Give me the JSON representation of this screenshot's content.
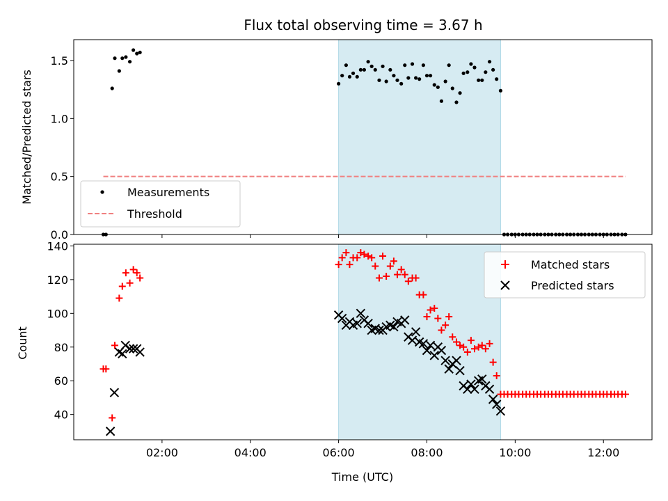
{
  "chart_data": [
    {
      "type": "scatter",
      "title": "Flux total observing time = 3.67 h",
      "ylabel": "Matched/Predicted stars",
      "xlabel": "",
      "xlim_hours": [
        0.0,
        13.1
      ],
      "ylim": [
        0.0,
        1.68
      ],
      "yticks": [
        0.0,
        0.5,
        1.0,
        1.5
      ],
      "ytick_labels": [
        "0.0",
        "0.5",
        "1.0",
        "1.5"
      ],
      "shaded_span_hours": [
        6.0,
        9.67
      ],
      "shaded_color": "#add8e6",
      "legend_position": "lower-left",
      "legend": [
        {
          "label": "Measurements",
          "marker": "dot",
          "color": "#000000"
        },
        {
          "label": "Threshold",
          "marker": "dashed-line",
          "color": "#f08080"
        }
      ],
      "series": [
        {
          "name": "Measurements",
          "marker": "dot",
          "color": "#000000",
          "x": [
            0.67,
            0.73,
            0.87,
            0.93,
            1.03,
            1.1,
            1.18,
            1.27,
            1.35,
            1.43,
            1.5,
            6.0,
            6.08,
            6.17,
            6.25,
            6.33,
            6.42,
            6.5,
            6.58,
            6.67,
            6.75,
            6.83,
            6.92,
            7.0,
            7.08,
            7.17,
            7.25,
            7.33,
            7.42,
            7.5,
            7.58,
            7.67,
            7.75,
            7.83,
            7.92,
            8.0,
            8.08,
            8.17,
            8.25,
            8.33,
            8.42,
            8.5,
            8.58,
            8.67,
            8.75,
            8.83,
            8.92,
            9.0,
            9.08,
            9.17,
            9.25,
            9.33,
            9.42,
            9.5,
            9.58,
            9.67,
            9.75,
            9.83,
            9.92,
            10.0,
            10.08,
            10.17,
            10.25,
            10.33,
            10.42,
            10.5,
            10.58,
            10.67,
            10.75,
            10.83,
            10.92,
            11.0,
            11.08,
            11.17,
            11.25,
            11.33,
            11.42,
            11.5,
            11.58,
            11.67,
            11.75,
            11.83,
            11.92,
            12.0,
            12.08,
            12.17,
            12.25,
            12.33,
            12.42,
            12.5
          ],
          "y": [
            0.0,
            0.0,
            1.26,
            1.52,
            1.41,
            1.52,
            1.53,
            1.49,
            1.59,
            1.56,
            1.57,
            1.3,
            1.37,
            1.46,
            1.36,
            1.39,
            1.36,
            1.42,
            1.42,
            1.49,
            1.45,
            1.42,
            1.33,
            1.45,
            1.32,
            1.42,
            1.37,
            1.33,
            1.3,
            1.46,
            1.35,
            1.47,
            1.35,
            1.34,
            1.46,
            1.37,
            1.37,
            1.29,
            1.27,
            1.15,
            1.32,
            1.46,
            1.26,
            1.14,
            1.22,
            1.39,
            1.4,
            1.47,
            1.44,
            1.33,
            1.33,
            1.4,
            1.49,
            1.42,
            1.34,
            1.24,
            0.0,
            0.0,
            0.0,
            0.0,
            0.0,
            0.0,
            0.0,
            0.0,
            0.0,
            0.0,
            0.0,
            0.0,
            0.0,
            0.0,
            0.0,
            0.0,
            0.0,
            0.0,
            0.0,
            0.0,
            0.0,
            0.0,
            0.0,
            0.0,
            0.0,
            0.0,
            0.0,
            0.0,
            0.0,
            0.0,
            0.0,
            0.0,
            0.0,
            0.0
          ]
        },
        {
          "name": "Threshold",
          "marker": "dashed-line",
          "color": "#f08080",
          "x": [
            0.67,
            12.5
          ],
          "y": [
            0.5,
            0.5
          ]
        }
      ]
    },
    {
      "type": "scatter",
      "title": "",
      "ylabel": "Count",
      "xlabel": "Time (UTC)",
      "xlim_hours": [
        0.0,
        13.1
      ],
      "ylim": [
        25.0,
        141.0
      ],
      "yticks": [
        40,
        60,
        80,
        100,
        120,
        140
      ],
      "ytick_labels": [
        "40",
        "60",
        "80",
        "100",
        "120",
        "140"
      ],
      "xticks_hours": [
        2,
        4,
        6,
        8,
        10,
        12
      ],
      "xtick_labels": [
        "02:00",
        "04:00",
        "06:00",
        "08:00",
        "10:00",
        "12:00"
      ],
      "shaded_span_hours": [
        6.0,
        9.67
      ],
      "shaded_color": "#add8e6",
      "legend_position": "upper-right",
      "legend": [
        {
          "label": "Matched stars",
          "marker": "plus",
          "color": "#ff0000"
        },
        {
          "label": "Predicted stars",
          "marker": "x",
          "color": "#000000"
        }
      ],
      "series": [
        {
          "name": "Matched stars",
          "marker": "plus",
          "color": "#ff0000",
          "x": [
            0.67,
            0.73,
            0.87,
            0.93,
            1.03,
            1.1,
            1.18,
            1.27,
            1.35,
            1.43,
            1.5,
            6.0,
            6.08,
            6.17,
            6.25,
            6.33,
            6.42,
            6.5,
            6.58,
            6.67,
            6.75,
            6.83,
            6.92,
            7.0,
            7.08,
            7.17,
            7.25,
            7.33,
            7.42,
            7.5,
            7.58,
            7.67,
            7.75,
            7.83,
            7.92,
            8.0,
            8.08,
            8.17,
            8.25,
            8.33,
            8.42,
            8.5,
            8.58,
            8.67,
            8.75,
            8.83,
            8.92,
            9.0,
            9.08,
            9.17,
            9.25,
            9.33,
            9.42,
            9.5,
            9.58,
            9.67,
            9.75,
            9.83,
            9.92,
            10.0,
            10.08,
            10.17,
            10.25,
            10.33,
            10.42,
            10.5,
            10.58,
            10.67,
            10.75,
            10.83,
            10.92,
            11.0,
            11.08,
            11.17,
            11.25,
            11.33,
            11.42,
            11.5,
            11.58,
            11.67,
            11.75,
            11.83,
            11.92,
            12.0,
            12.08,
            12.17,
            12.25,
            12.33,
            12.42,
            12.5
          ],
          "y": [
            67,
            67,
            38,
            81,
            109,
            116,
            124,
            118,
            126,
            124,
            121,
            129,
            133,
            136,
            129,
            133,
            133,
            136,
            135,
            134,
            133,
            128,
            121,
            134,
            122,
            128,
            131,
            123,
            126,
            123,
            119,
            121,
            121,
            111,
            111,
            98,
            102,
            103,
            97,
            90,
            93,
            98,
            86,
            83,
            81,
            80,
            77,
            84,
            79,
            80,
            81,
            79,
            82,
            71,
            63,
            52,
            52,
            52,
            52,
            52,
            52,
            52,
            52,
            52,
            52,
            52,
            52,
            52,
            52,
            52,
            52,
            52,
            52,
            52,
            52,
            52,
            52,
            52,
            52,
            52,
            52,
            52,
            52,
            52,
            52,
            52,
            52,
            52,
            52,
            52
          ]
        },
        {
          "name": "Predicted stars",
          "marker": "x",
          "color": "#000000",
          "x": [
            0.83,
            0.92,
            1.03,
            1.1,
            1.17,
            1.27,
            1.35,
            1.43,
            1.5,
            6.0,
            6.08,
            6.17,
            6.25,
            6.33,
            6.42,
            6.5,
            6.58,
            6.67,
            6.75,
            6.83,
            6.92,
            7.0,
            7.08,
            7.17,
            7.25,
            7.33,
            7.42,
            7.5,
            7.58,
            7.67,
            7.75,
            7.83,
            7.92,
            8.0,
            8.08,
            8.17,
            8.25,
            8.33,
            8.42,
            8.5,
            8.58,
            8.67,
            8.75,
            8.83,
            8.92,
            9.0,
            9.08,
            9.17,
            9.25,
            9.33,
            9.42,
            9.5,
            9.58,
            9.67
          ],
          "y": [
            30,
            53,
            77,
            76,
            81,
            79,
            79,
            79,
            77,
            99,
            97,
            93,
            95,
            93,
            94,
            100,
            96,
            94,
            90,
            91,
            90,
            90,
            92,
            93,
            92,
            95,
            94,
            96,
            86,
            84,
            89,
            83,
            82,
            78,
            81,
            75,
            80,
            78,
            72,
            67,
            70,
            72,
            66,
            57,
            55,
            58,
            55,
            60,
            61,
            57,
            55,
            49,
            46,
            42
          ]
        }
      ]
    }
  ]
}
